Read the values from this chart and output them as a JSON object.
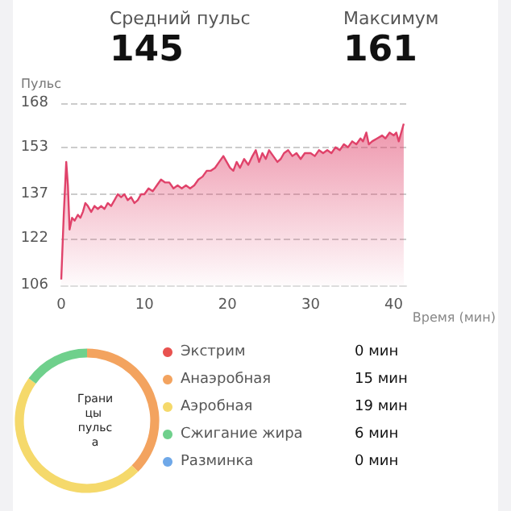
{
  "chart_data": [
    {
      "type": "area",
      "ylabel": "Пульс",
      "xlabel": "Время (мин)",
      "annotations": [
        "Средний пульс",
        "145",
        "Максимум",
        "161"
      ],
      "xlim": [
        0,
        41.5
      ],
      "xticks": [
        0,
        10,
        20,
        30,
        40
      ],
      "ylim": [
        106,
        168
      ],
      "yticks": [
        106,
        122,
        137,
        153,
        168
      ],
      "grid": "y",
      "line_style": "solid",
      "marker": "none",
      "series": [
        {
          "color": "#e0426a",
          "x": [
            0,
            0.3,
            0.6,
            0.8,
            1.0,
            1.3,
            1.6,
            2.0,
            2.3,
            2.6,
            2.9,
            3.2,
            3.6,
            4.0,
            4.4,
            4.8,
            5.2,
            5.6,
            6.0,
            6.4,
            6.8,
            7.2,
            7.6,
            8.0,
            8.4,
            8.8,
            9.2,
            9.6,
            10.0,
            10.5,
            11.0,
            11.5,
            12.0,
            12.5,
            13.0,
            13.5,
            14.0,
            14.5,
            15.0,
            15.5,
            16.0,
            16.5,
            17.0,
            17.5,
            18.0,
            18.5,
            19.0,
            19.5,
            19.9,
            20.3,
            20.7,
            21.1,
            21.5,
            22.0,
            22.5,
            23.0,
            23.4,
            23.8,
            24.2,
            24.6,
            25.0,
            25.5,
            26.0,
            26.4,
            26.8,
            27.3,
            27.8,
            28.3,
            28.8,
            29.3,
            30.0,
            30.5,
            31.0,
            31.5,
            32.0,
            32.5,
            33.0,
            33.5,
            34.0,
            34.5,
            35.0,
            35.5,
            36.0,
            36.3,
            36.7,
            37.0,
            37.4,
            38.0,
            38.6,
            39.0,
            39.5,
            40.0,
            40.3,
            40.6,
            41.2
          ],
          "values": [
            108,
            130,
            148,
            140,
            125,
            129,
            128,
            130,
            129,
            131,
            134,
            133,
            131,
            133,
            132,
            133,
            132,
            134,
            133,
            135,
            137,
            136,
            137,
            135,
            136,
            134,
            135,
            137,
            137,
            139,
            138,
            140,
            142,
            141,
            141,
            139,
            140,
            139,
            140,
            139,
            140,
            142,
            143,
            145,
            145,
            146,
            148,
            150,
            148,
            146,
            145,
            148,
            146,
            149,
            147,
            150,
            152,
            148,
            151,
            149,
            152,
            150,
            148,
            149,
            151,
            152,
            150,
            151,
            149,
            151,
            151,
            150,
            152,
            151,
            152,
            151,
            153,
            152,
            154,
            153,
            155,
            154,
            156,
            155,
            158,
            154,
            155,
            156,
            157,
            156,
            158,
            157,
            158,
            155,
            161
          ]
        }
      ]
    },
    {
      "type": "donut",
      "title": "Границы пульса",
      "legend": "right",
      "categories": [
        "Экстрим",
        "Анаэробная",
        "Аэробная",
        "Сжигание жира",
        "Разминка"
      ],
      "values": [
        0,
        15,
        19,
        6,
        0
      ],
      "value_labels": [
        "0 мин",
        "15 мин",
        "19 мин",
        "6 мин",
        "0 мин"
      ],
      "colors": [
        "#e8524f",
        "#f3a35f",
        "#f5d96b",
        "#6fd08c",
        "#6fa8e8"
      ]
    }
  ]
}
